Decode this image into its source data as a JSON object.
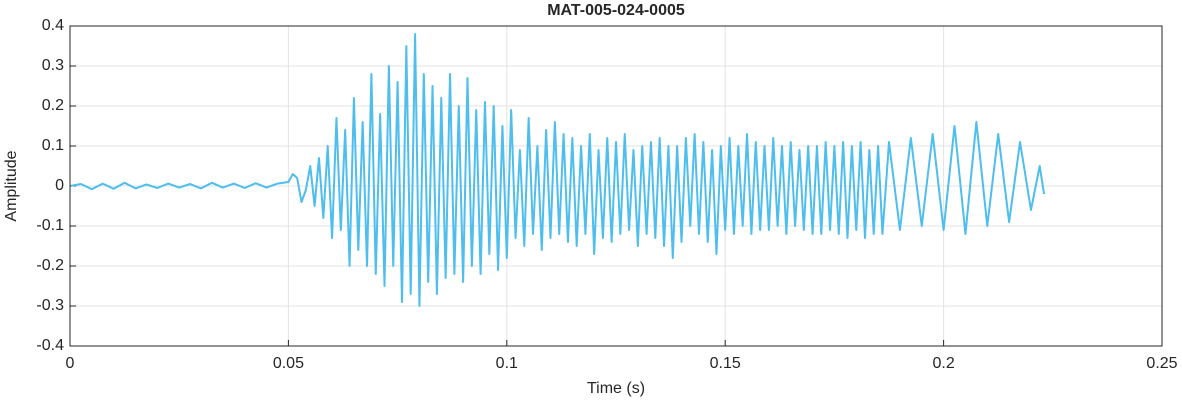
{
  "chart_data": {
    "type": "line",
    "title": "MAT-005-024-0005",
    "xlabel": "Time (s)",
    "ylabel": "Amplitude",
    "color": "#4dbeee",
    "grid": true,
    "xlim": [
      0,
      0.25
    ],
    "xticks": [
      0,
      0.05,
      0.1,
      0.15,
      0.2,
      0.25
    ],
    "ylim": [
      -0.4,
      0.4
    ],
    "yticks": [
      -0.4,
      -0.3,
      -0.2,
      -0.1,
      0,
      0.1,
      0.2,
      0.3,
      0.4
    ],
    "x": [
      0,
      0.0025,
      0.005,
      0.0075,
      0.01,
      0.0125,
      0.015,
      0.0175,
      0.02,
      0.0225,
      0.025,
      0.0275,
      0.03,
      0.0325,
      0.035,
      0.0375,
      0.04,
      0.0425,
      0.045,
      0.0475,
      0.05,
      0.051,
      0.052,
      0.053,
      0.054,
      0.055,
      0.056,
      0.057,
      0.058,
      0.059,
      0.06,
      0.061,
      0.062,
      0.063,
      0.064,
      0.065,
      0.066,
      0.067,
      0.068,
      0.069,
      0.07,
      0.071,
      0.072,
      0.073,
      0.074,
      0.075,
      0.076,
      0.077,
      0.078,
      0.079,
      0.08,
      0.081,
      0.082,
      0.083,
      0.084,
      0.085,
      0.086,
      0.087,
      0.088,
      0.089,
      0.09,
      0.091,
      0.092,
      0.093,
      0.094,
      0.095,
      0.096,
      0.097,
      0.098,
      0.099,
      0.1,
      0.101,
      0.102,
      0.103,
      0.104,
      0.105,
      0.106,
      0.107,
      0.108,
      0.109,
      0.11,
      0.111,
      0.112,
      0.113,
      0.114,
      0.115,
      0.116,
      0.117,
      0.118,
      0.119,
      0.12,
      0.121,
      0.122,
      0.123,
      0.124,
      0.125,
      0.126,
      0.127,
      0.128,
      0.129,
      0.13,
      0.131,
      0.132,
      0.133,
      0.134,
      0.135,
      0.136,
      0.137,
      0.138,
      0.139,
      0.14,
      0.141,
      0.142,
      0.143,
      0.144,
      0.145,
      0.146,
      0.147,
      0.148,
      0.149,
      0.15,
      0.151,
      0.152,
      0.153,
      0.154,
      0.155,
      0.156,
      0.157,
      0.158,
      0.159,
      0.16,
      0.161,
      0.162,
      0.163,
      0.164,
      0.165,
      0.166,
      0.167,
      0.168,
      0.169,
      0.17,
      0.171,
      0.172,
      0.173,
      0.174,
      0.175,
      0.176,
      0.177,
      0.178,
      0.179,
      0.18,
      0.181,
      0.182,
      0.183,
      0.184,
      0.185,
      0.186,
      0.1875,
      0.19,
      0.1925,
      0.195,
      0.1975,
      0.2,
      0.2025,
      0.205,
      0.2075,
      0.21,
      0.2125,
      0.215,
      0.2175,
      0.22,
      0.222,
      0.223
    ],
    "values": [
      0,
      0.005,
      -0.008,
      0.006,
      -0.007,
      0.008,
      -0.006,
      0.004,
      -0.005,
      0.006,
      -0.004,
      0.005,
      -0.006,
      0.008,
      -0.004,
      0.006,
      -0.005,
      0.007,
      -0.004,
      0.006,
      0.01,
      0.03,
      0.02,
      -0.04,
      -0.01,
      0.05,
      -0.05,
      0.07,
      -0.08,
      0.1,
      -0.13,
      0.17,
      -0.11,
      0.14,
      -0.2,
      0.22,
      -0.16,
      0.16,
      -0.2,
      0.28,
      -0.22,
      0.18,
      -0.25,
      0.3,
      -0.2,
      0.26,
      -0.29,
      0.35,
      -0.27,
      0.38,
      -0.3,
      0.28,
      -0.24,
      0.25,
      -0.27,
      0.22,
      -0.23,
      0.28,
      -0.22,
      0.2,
      -0.24,
      0.27,
      -0.2,
      0.19,
      -0.22,
      0.21,
      -0.17,
      0.2,
      -0.21,
      0.15,
      -0.18,
      0.19,
      -0.13,
      0.09,
      -0.15,
      0.17,
      -0.12,
      0.1,
      -0.16,
      0.14,
      -0.13,
      0.16,
      -0.12,
      0.13,
      -0.14,
      0.12,
      -0.15,
      0.1,
      -0.12,
      0.13,
      -0.17,
      0.09,
      -0.13,
      0.12,
      -0.14,
      0.11,
      -0.12,
      0.13,
      -0.11,
      0.09,
      -0.15,
      0.1,
      -0.12,
      0.11,
      -0.13,
      0.12,
      -0.15,
      0.1,
      -0.18,
      0.1,
      -0.14,
      0.12,
      -0.1,
      0.13,
      -0.12,
      0.11,
      -0.14,
      0.09,
      -0.17,
      0.1,
      -0.11,
      0.12,
      -0.12,
      0.1,
      -0.1,
      0.13,
      -0.12,
      0.11,
      -0.11,
      0.1,
      -0.11,
      0.12,
      -0.1,
      0.1,
      -0.12,
      0.11,
      -0.1,
      0.09,
      -0.11,
      0.1,
      -0.12,
      0.1,
      -0.12,
      0.11,
      -0.11,
      0.1,
      -0.12,
      0.11,
      -0.13,
      0.1,
      -0.11,
      0.11,
      -0.13,
      0.09,
      -0.12,
      0.1,
      -0.12,
      0.11,
      -0.11,
      0.12,
      -0.1,
      0.13,
      -0.11,
      0.15,
      -0.12,
      0.16,
      -0.1,
      0.13,
      -0.09,
      0.11,
      -0.06,
      0.05,
      -0.02
    ]
  }
}
